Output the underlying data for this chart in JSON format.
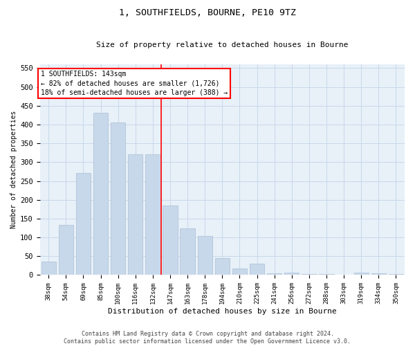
{
  "title": "1, SOUTHFIELDS, BOURNE, PE10 9TZ",
  "subtitle": "Size of property relative to detached houses in Bourne",
  "xlabel": "Distribution of detached houses by size in Bourne",
  "ylabel": "Number of detached properties",
  "bar_color": "#c8d8eb",
  "bar_edge_color": "#aabfd4",
  "grid_color": "#c8d8eb",
  "background_color": "#e8f0f8",
  "categories": [
    "38sqm",
    "54sqm",
    "69sqm",
    "85sqm",
    "100sqm",
    "116sqm",
    "132sqm",
    "147sqm",
    "163sqm",
    "178sqm",
    "194sqm",
    "210sqm",
    "225sqm",
    "241sqm",
    "256sqm",
    "272sqm",
    "288sqm",
    "303sqm",
    "319sqm",
    "334sqm",
    "350sqm"
  ],
  "values": [
    35,
    133,
    271,
    432,
    406,
    320,
    320,
    185,
    125,
    103,
    45,
    18,
    30,
    5,
    7,
    2,
    2,
    0,
    7,
    5,
    2
  ],
  "ylim": [
    0,
    560
  ],
  "yticks": [
    0,
    50,
    100,
    150,
    200,
    250,
    300,
    350,
    400,
    450,
    500,
    550
  ],
  "vline_pos": 7.0,
  "annotation_title": "1 SOUTHFIELDS: 143sqm",
  "annotation_line1": "← 82% of detached houses are smaller (1,726)",
  "annotation_line2": "18% of semi-detached houses are larger (388) →",
  "footer_line1": "Contains HM Land Registry data © Crown copyright and database right 2024.",
  "footer_line2": "Contains public sector information licensed under the Open Government Licence v3.0."
}
